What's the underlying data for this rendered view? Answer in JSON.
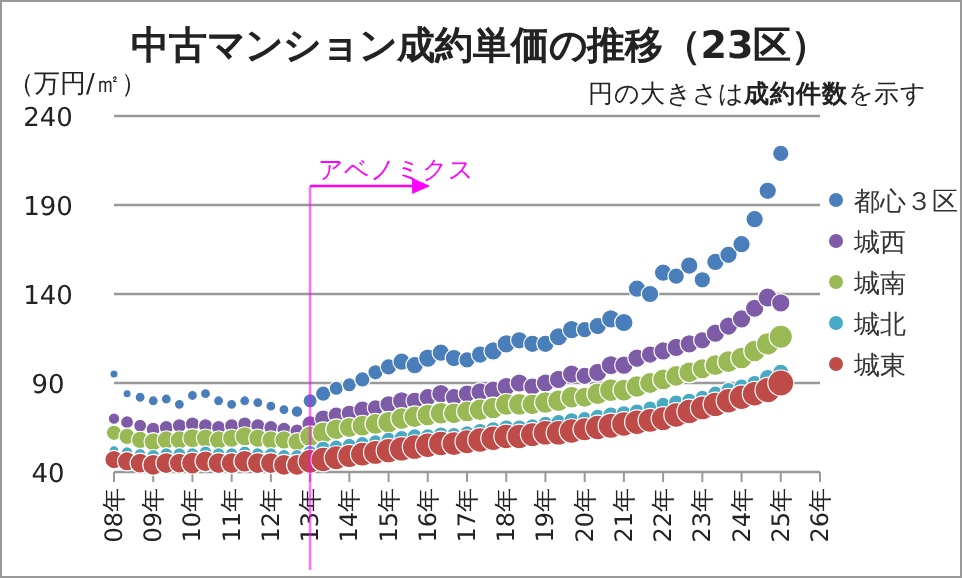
{
  "chart_data": {
    "type": "bubble",
    "title": "中古マンション成約単価の推移（23区）",
    "ylabel": "（万円/㎡）",
    "annotations": [
      "円の大きさは**成約件数**を示す"
    ],
    "categories": [
      "08年",
      null,
      null,
      "09年",
      null,
      null,
      "10年",
      null,
      null,
      "11年",
      null,
      null,
      "12年",
      null,
      null,
      "13年",
      null,
      null,
      "14年",
      null,
      null,
      "15年",
      null,
      null,
      "16年",
      null,
      null,
      "17年",
      null,
      null,
      "18年",
      null,
      null,
      "19年",
      null,
      null,
      "20年",
      null,
      null,
      "21年",
      null,
      null,
      "22年",
      null,
      null,
      "23年",
      null,
      null,
      "24年",
      null,
      null,
      "25年",
      null,
      null,
      "26年"
    ],
    "series": [
      {
        "name": "都心３区",
        "color": "#4a7ebb",
        "values": [
          95,
          84,
          82,
          80,
          81,
          78,
          83,
          84,
          80,
          78,
          80,
          79,
          77,
          75,
          74,
          80,
          84,
          87,
          89,
          92,
          96,
          99,
          102,
          100,
          104,
          107,
          104,
          103,
          106,
          108,
          112,
          114,
          112,
          112,
          116,
          120,
          120,
          122,
          126,
          124,
          143,
          140,
          152,
          150,
          156,
          148,
          158,
          162,
          168,
          182,
          198,
          219,
          null,
          null,
          null
        ],
        "sizes": [
          0.1,
          0.1,
          0.15,
          0.15,
          0.15,
          0.15,
          0.15,
          0.15,
          0.15,
          0.15,
          0.15,
          0.15,
          0.15,
          0.15,
          0.2,
          0.3,
          0.35,
          0.3,
          0.3,
          0.35,
          0.35,
          0.4,
          0.45,
          0.45,
          0.5,
          0.45,
          0.45,
          0.4,
          0.45,
          0.5,
          0.5,
          0.45,
          0.45,
          0.45,
          0.5,
          0.5,
          0.4,
          0.45,
          0.5,
          0.5,
          0.45,
          0.45,
          0.45,
          0.4,
          0.45,
          0.4,
          0.45,
          0.45,
          0.45,
          0.45,
          0.45,
          0.4,
          null,
          null,
          null
        ]
      },
      {
        "name": "城西",
        "color": "#7d5ba6",
        "values": [
          70,
          68,
          66,
          64,
          65,
          66,
          67,
          66,
          65,
          66,
          67,
          66,
          65,
          64,
          63,
          67,
          70,
          72,
          73,
          75,
          76,
          78,
          80,
          80,
          82,
          84,
          82,
          84,
          85,
          86,
          88,
          90,
          88,
          90,
          92,
          95,
          94,
          96,
          100,
          100,
          104,
          106,
          108,
          110,
          112,
          114,
          118,
          122,
          126,
          132,
          138,
          135,
          null,
          null,
          null
        ],
        "sizes": [
          0.2,
          0.25,
          0.25,
          0.3,
          0.3,
          0.3,
          0.3,
          0.3,
          0.3,
          0.3,
          0.3,
          0.3,
          0.3,
          0.3,
          0.3,
          0.4,
          0.45,
          0.4,
          0.4,
          0.45,
          0.4,
          0.45,
          0.5,
          0.45,
          0.45,
          0.5,
          0.45,
          0.45,
          0.5,
          0.5,
          0.5,
          0.5,
          0.45,
          0.5,
          0.5,
          0.5,
          0.45,
          0.5,
          0.55,
          0.5,
          0.5,
          0.45,
          0.5,
          0.5,
          0.5,
          0.45,
          0.5,
          0.5,
          0.5,
          0.5,
          0.55,
          0.5,
          null,
          null,
          null
        ]
      },
      {
        "name": "城南",
        "color": "#98b954",
        "values": [
          62,
          60,
          58,
          57,
          58,
          58,
          59,
          59,
          58,
          59,
          60,
          59,
          58,
          58,
          57,
          60,
          62,
          64,
          65,
          66,
          67,
          68,
          70,
          71,
          72,
          73,
          73,
          74,
          75,
          76,
          78,
          78,
          78,
          79,
          80,
          82,
          82,
          84,
          86,
          86,
          88,
          90,
          92,
          94,
          96,
          98,
          100,
          102,
          104,
          108,
          112,
          116,
          null,
          null,
          null
        ],
        "sizes": [
          0.35,
          0.4,
          0.45,
          0.5,
          0.5,
          0.5,
          0.55,
          0.5,
          0.5,
          0.5,
          0.55,
          0.5,
          0.5,
          0.5,
          0.5,
          0.65,
          0.7,
          0.65,
          0.6,
          0.65,
          0.65,
          0.7,
          0.7,
          0.7,
          0.7,
          0.7,
          0.65,
          0.65,
          0.7,
          0.7,
          0.7,
          0.7,
          0.65,
          0.7,
          0.7,
          0.7,
          0.6,
          0.7,
          0.75,
          0.7,
          0.7,
          0.65,
          0.65,
          0.65,
          0.65,
          0.6,
          0.65,
          0.7,
          0.7,
          0.7,
          0.75,
          0.8,
          null,
          null,
          null
        ]
      },
      {
        "name": "城北",
        "color": "#46aac5",
        "values": [
          52,
          51,
          50,
          49,
          50,
          50,
          50,
          51,
          50,
          50,
          51,
          50,
          50,
          49,
          49,
          51,
          53,
          54,
          55,
          56,
          57,
          58,
          59,
          60,
          60,
          61,
          61,
          62,
          63,
          64,
          65,
          65,
          66,
          67,
          68,
          69,
          70,
          71,
          72,
          73,
          74,
          76,
          78,
          79,
          80,
          82,
          84,
          86,
          88,
          90,
          93,
          96,
          null,
          null,
          null
        ],
        "sizes": [
          0.15,
          0.2,
          0.2,
          0.25,
          0.25,
          0.25,
          0.25,
          0.25,
          0.25,
          0.25,
          0.25,
          0.25,
          0.25,
          0.25,
          0.25,
          0.3,
          0.35,
          0.3,
          0.3,
          0.3,
          0.3,
          0.35,
          0.35,
          0.35,
          0.35,
          0.35,
          0.3,
          0.3,
          0.35,
          0.35,
          0.35,
          0.35,
          0.3,
          0.35,
          0.35,
          0.35,
          0.3,
          0.35,
          0.4,
          0.35,
          0.35,
          0.3,
          0.3,
          0.35,
          0.35,
          0.3,
          0.35,
          0.35,
          0.35,
          0.35,
          0.4,
          0.4,
          null,
          null,
          null
        ]
      },
      {
        "name": "城東",
        "color": "#be4b48",
        "values": [
          47,
          46,
          45,
          44,
          45,
          45,
          45,
          46,
          45,
          45,
          46,
          45,
          45,
          44,
          44,
          46,
          47,
          48,
          49,
          50,
          51,
          52,
          53,
          54,
          55,
          56,
          56,
          57,
          58,
          59,
          60,
          60,
          61,
          62,
          62,
          63,
          64,
          65,
          66,
          67,
          68,
          69,
          70,
          72,
          74,
          76,
          78,
          80,
          82,
          84,
          86,
          90,
          null,
          null,
          null
        ],
        "sizes": [
          0.5,
          0.55,
          0.6,
          0.65,
          0.65,
          0.6,
          0.7,
          0.65,
          0.65,
          0.65,
          0.7,
          0.65,
          0.65,
          0.65,
          0.65,
          0.85,
          0.9,
          0.85,
          0.8,
          0.85,
          0.85,
          0.9,
          0.9,
          0.9,
          0.9,
          0.9,
          0.85,
          0.85,
          0.9,
          0.9,
          0.9,
          0.9,
          0.85,
          0.9,
          0.9,
          0.9,
          0.8,
          0.9,
          0.95,
          0.9,
          0.9,
          0.85,
          0.85,
          0.9,
          0.9,
          0.85,
          0.9,
          0.9,
          0.9,
          0.9,
          0.95,
          1,
          null,
          null,
          null
        ]
      }
    ],
    "ylim": [
      40,
      240
    ],
    "yticks": [
      40,
      90,
      140,
      190,
      240
    ],
    "grid": "y",
    "legend": "right",
    "ref_lines": [
      {
        "axis": "x",
        "value": "13年",
        "label": "アベノミクス",
        "color": "#ff00ff"
      }
    ]
  }
}
